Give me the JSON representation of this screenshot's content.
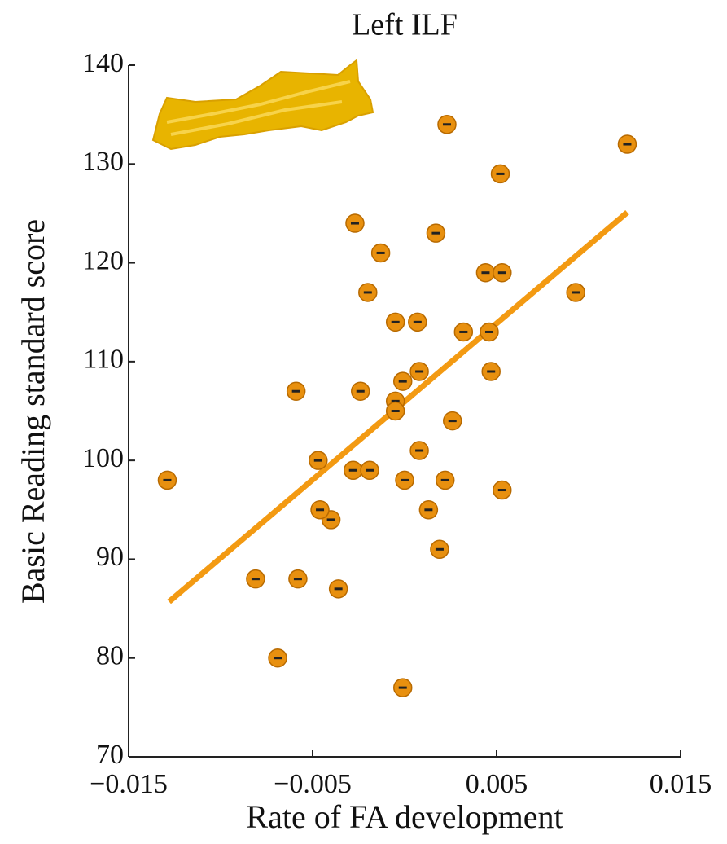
{
  "chart_data": {
    "type": "scatter",
    "title": "Left ILF",
    "x_label": "Rate of FA development",
    "y_label": "Basic Reading standard score",
    "xlim": [
      -0.015,
      0.015
    ],
    "ylim": [
      70,
      140
    ],
    "xticks": [
      {
        "value": -0.015,
        "label": "−0.015"
      },
      {
        "value": -0.005,
        "label": "−0.005"
      },
      0.005,
      0.015
    ],
    "yticks": [
      70,
      80,
      90,
      100,
      110,
      120,
      130,
      140
    ],
    "series": [
      {
        "color": "#e8900f",
        "x": [
          -0.0129,
          -0.0081,
          -0.0058,
          -0.0069,
          -0.0036,
          -0.004,
          -0.0046,
          -0.0047,
          -0.0059,
          -0.0028,
          -0.0019,
          -0.0024,
          -0.0027,
          -0.0013,
          -0.002,
          -0.0005,
          0.0007,
          -0.0005,
          -0.0005,
          -0.0001,
          0.0008,
          0.0008,
          0.0,
          0.0013,
          0.0022,
          0.0019,
          -0.0001,
          0.0026,
          0.0032,
          0.0017,
          0.0023,
          0.0052,
          0.0044,
          0.0053,
          0.0046,
          0.0047,
          0.0053,
          0.0093,
          0.0121
        ],
        "values": [
          98,
          88,
          88,
          80,
          87,
          94,
          95,
          100,
          107,
          99,
          99,
          107,
          124,
          121,
          117,
          114,
          114,
          106,
          105,
          108,
          109,
          101,
          98,
          95,
          98,
          91,
          77,
          104,
          113,
          123,
          134,
          129,
          119,
          119,
          113,
          109,
          97,
          117,
          132
        ]
      }
    ],
    "fit_line": {
      "color": "#f39a12",
      "x": [
        -0.0128,
        0.0121
      ],
      "values": [
        85.7,
        125.1
      ]
    }
  }
}
